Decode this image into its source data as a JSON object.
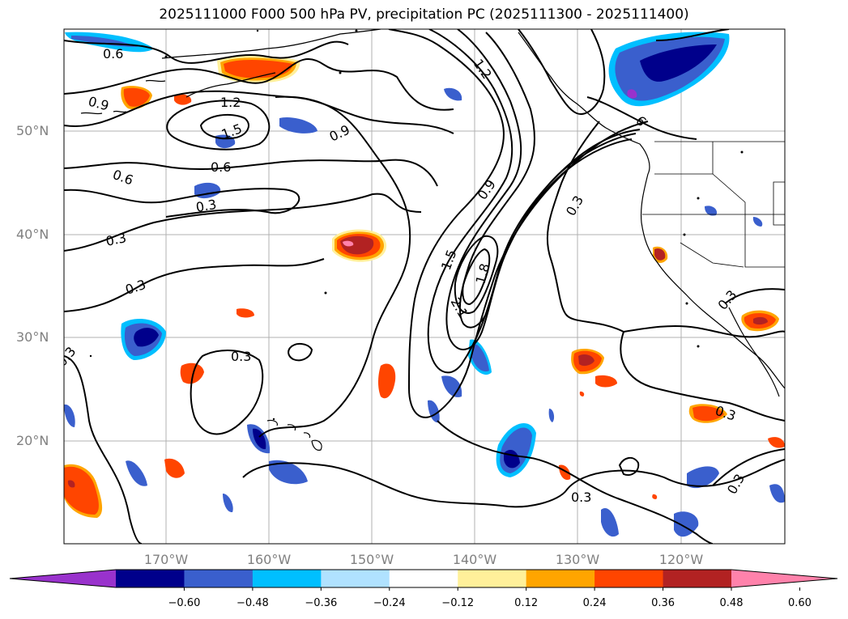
{
  "title": "2025111000 F000 500 hPa PV, precipitation PC (2025111300 - 2025111400)",
  "lat_labels": [
    "50°N",
    "40°N",
    "30°N",
    "20°N"
  ],
  "lon_labels": [
    "170°W",
    "160°W",
    "150°W",
    "140°W",
    "130°W",
    "120°W"
  ],
  "contour_labels": [
    "0.6",
    "0.9",
    "1.2",
    "1.5",
    "0.9",
    "0.6",
    "0.6",
    "0.3",
    "0.3",
    "0.3",
    "0.3",
    "0.3",
    "0.9",
    "1.5",
    "1.8",
    "2.1",
    "0.3",
    "1.2",
    "6",
    "0.3",
    "0.3",
    "0.3",
    "0.3"
  ],
  "colorbar": {
    "ticks": [
      "−0.60",
      "−0.48",
      "−0.36",
      "−0.24",
      "−0.12",
      "0.12",
      "0.24",
      "0.36",
      "0.48",
      "0.60"
    ],
    "colors": [
      "#9932cc",
      "#00008b",
      "#3a5fcd",
      "#00bfff",
      "#b0e2ff",
      "#ffffff",
      "#fff09a",
      "#ffa500",
      "#ff4500",
      "#b22222",
      "#ff82ab"
    ]
  }
}
